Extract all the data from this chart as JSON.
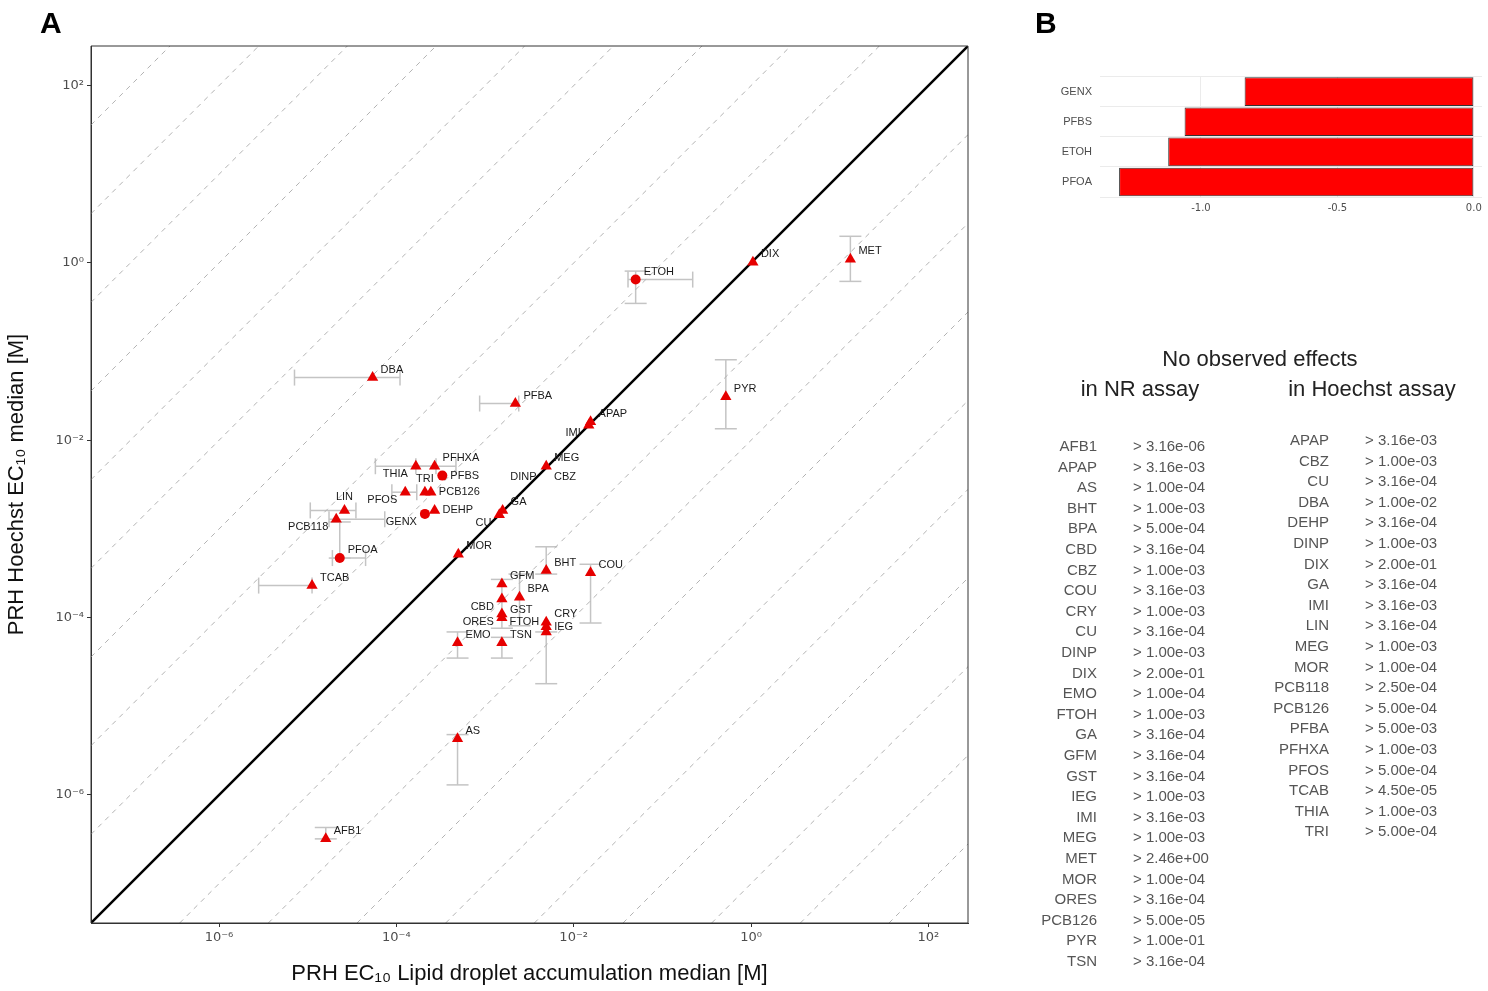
{
  "chart_data": [
    {
      "type": "scatter",
      "title": "A",
      "xlabel": "PRH EC₁₀ Lipid droplet accumulation median [M]",
      "ylabel": "PRH Hoechst EC₁₀ median [M]",
      "log": "xy",
      "grid": false,
      "xlim": [
        3.6e-08,
        280
      ],
      "ylim": [
        3.6e-08,
        280
      ],
      "xticks": [
        {
          "value": 1e-06,
          "label": "10⁻⁶"
        },
        {
          "value": 0.0001,
          "label": "10⁻⁴"
        },
        {
          "value": 0.01,
          "label": "10⁻²"
        },
        {
          "value": 1,
          "label": "10⁰"
        },
        {
          "value": 100,
          "label": "10²"
        }
      ],
      "yticks": [
        {
          "value": 1e-06,
          "label": "10⁻⁶"
        },
        {
          "value": 0.0001,
          "label": "10⁻⁴"
        },
        {
          "value": 0.01,
          "label": "10⁻²"
        },
        {
          "value": 1,
          "label": "10⁰"
        },
        {
          "value": 100,
          "label": "10²"
        }
      ],
      "series": [
        {
          "type": "scatter",
          "marker": "triangle",
          "color": "#e60000",
          "x": [
            5.4e-05,
            0.0022,
            0.0155,
            0.0148,
            0.000166,
            0.00027,
            0.000126,
            0.00021,
            0.000245,
            0.00027,
            2.6e-05,
            2.1e-05,
            1.12e-05,
            0.0005,
            0.00158,
            0.00145,
            0.0049,
            null,
            null,
            1.05,
            13.2,
            0.52,
            0.0049,
            0.0155,
            0.00155,
            0.00155,
            0.00245,
            0.00155,
            0.00155,
            0.00155,
            0.00049,
            0.0049,
            0.0049,
            0.0049,
            0.00049,
            1.6e-05
          ],
          "values": [
            0.051,
            0.026,
            0.0162,
            0.0148,
            0.0051,
            0.0051,
            0.0026,
            0.0026,
            0.0026,
            0.00162,
            0.00162,
            0.00129,
            0.00023,
            0.00052,
            0.00162,
            0.00145,
            0.0051,
            null,
            null,
            1.02,
            1.1,
            0.031,
            0.00034,
            0.00032,
            0.00024,
            0.000162,
            0.00017,
            0.00011,
            0.0001,
            5.2e-05,
            5.2e-05,
            8.9e-05,
            7.9e-05,
            6.9e-05,
            4.3e-06,
            3.2e-07
          ],
          "xerrors": [
            [
              7.1e-06,
              0.00011
            ],
            [
              0.00087,
              0.0024
            ],
            null,
            null,
            [
              5.8e-05,
              0.00028
            ],
            [
              0.000166,
              0.00047
            ],
            [
              8.9e-05,
              0.00017
            ],
            null,
            null,
            null,
            [
              1.07e-05,
              3.5e-05
            ],
            [
              1.74e-05,
              7.4e-05
            ],
            [
              2.8e-06,
              1.12e-05
            ],
            null,
            null,
            null,
            null,
            null,
            null,
            null,
            null,
            null,
            null,
            null,
            null,
            null,
            null,
            null,
            null,
            null,
            null,
            null,
            null,
            null,
            null,
            null
          ],
          "errors": [
            null,
            null,
            null,
            null,
            null,
            null,
            null,
            null,
            null,
            null,
            null,
            null,
            null,
            null,
            null,
            null,
            null,
            null,
            null,
            null,
            [
              0.62,
              2.0
            ],
            [
              0.0135,
              0.081
            ],
            [
              0.00031,
              0.00063
            ],
            [
              8.7e-05,
              0.0004
            ],
            null,
            null,
            [
              8.1e-05,
              0.00031
            ],
            null,
            [
              7.6e-05,
              0.00027
            ],
            [
              3.5e-05,
              6e-05
            ],
            [
              3.5e-05,
              6.9e-05
            ],
            null,
            null,
            [
              1.8e-05,
              6.9e-05
            ],
            [
              1.3e-06,
              4.8e-06
            ],
            [
              3.2e-07,
              4.3e-07
            ]
          ]
        },
        {
          "type": "scatter",
          "marker": "circle",
          "color": "#e60000",
          "x": [
            0.00033,
            0.00021,
            2.3e-05,
            0.05
          ],
          "values": [
            0.004,
            0.00148,
            0.00047,
            0.65
          ],
          "xerrors": [
            null,
            null,
            [
              1.9e-05,
              4.5e-05
            ],
            [
              0.041,
              0.22
            ]
          ],
          "errors": [
            null,
            null,
            [
              0.00047,
              0.0012
            ],
            [
              0.35,
              0.81
            ]
          ]
        },
        {
          "type": "line",
          "marker": "none",
          "line_style": "solid",
          "color": "#000000",
          "x": [
            3.6e-08,
            280
          ],
          "values": [
            3.6e-08,
            280
          ]
        },
        {
          "type": "line",
          "marker": "none",
          "line_style": "dashed",
          "color": "#b3b3b3",
          "x": [
            3.6e-08,
            28
          ],
          "values": [
            3.6e-07,
            280
          ]
        },
        {
          "type": "line",
          "marker": "none",
          "line_style": "dashed",
          "color": "#b3b3b3",
          "x": [
            3.6e-08,
            2.8
          ],
          "values": [
            3.6e-06,
            280
          ]
        },
        {
          "type": "line",
          "marker": "none",
          "line_style": "dashed",
          "color": "#b3b3b3",
          "x": [
            3.6e-08,
            0.28
          ],
          "values": [
            3.6e-05,
            280
          ]
        },
        {
          "type": "line",
          "marker": "none",
          "line_style": "dashed",
          "color": "#b3b3b3",
          "x": [
            3.6e-08,
            0.028
          ],
          "values": [
            0.00036,
            280
          ]
        },
        {
          "type": "line",
          "marker": "none",
          "line_style": "dashed",
          "color": "#b3b3b3",
          "x": [
            3.6e-08,
            0.0028
          ],
          "values": [
            0.0036,
            280
          ]
        },
        {
          "type": "line",
          "marker": "none",
          "line_style": "dashed",
          "color": "#b3b3b3",
          "x": [
            3.6e-08,
            0.00028
          ],
          "values": [
            0.036,
            280
          ]
        },
        {
          "type": "line",
          "marker": "none",
          "line_style": "dashed",
          "color": "#b3b3b3",
          "x": [
            3.6e-08,
            2.8e-05
          ],
          "values": [
            0.36,
            280
          ]
        },
        {
          "type": "line",
          "marker": "none",
          "line_style": "dashed",
          "color": "#b3b3b3",
          "x": [
            3.6e-08,
            2.8e-06
          ],
          "values": [
            3.6,
            280
          ]
        },
        {
          "type": "line",
          "marker": "none",
          "line_style": "dashed",
          "color": "#b3b3b3",
          "x": [
            3.6e-08,
            2.8e-07
          ],
          "values": [
            36,
            280
          ]
        },
        {
          "type": "line",
          "marker": "none",
          "line_style": "dashed",
          "color": "#b3b3b3",
          "x": [
            3.6e-07,
            280
          ],
          "values": [
            3.6e-08,
            28
          ]
        },
        {
          "type": "line",
          "marker": "none",
          "line_style": "dashed",
          "color": "#b3b3b3",
          "x": [
            3.6e-06,
            280
          ],
          "values": [
            3.6e-08,
            2.8
          ]
        },
        {
          "type": "line",
          "marker": "none",
          "line_style": "dashed",
          "color": "#b3b3b3",
          "x": [
            3.6e-05,
            280
          ],
          "values": [
            3.6e-08,
            0.28
          ]
        },
        {
          "type": "line",
          "marker": "none",
          "line_style": "dashed",
          "color": "#b3b3b3",
          "x": [
            0.00036,
            280
          ],
          "values": [
            3.6e-08,
            0.028
          ]
        },
        {
          "type": "line",
          "marker": "none",
          "line_style": "dashed",
          "color": "#b3b3b3",
          "x": [
            0.0036,
            280
          ],
          "values": [
            3.6e-08,
            0.0028
          ]
        },
        {
          "type": "line",
          "marker": "none",
          "line_style": "dashed",
          "color": "#b3b3b3",
          "x": [
            0.036,
            280
          ],
          "values": [
            3.6e-08,
            0.00028
          ]
        },
        {
          "type": "line",
          "marker": "none",
          "line_style": "dashed",
          "color": "#b3b3b3",
          "x": [
            0.36,
            280
          ],
          "values": [
            3.6e-08,
            2.8e-05
          ]
        },
        {
          "type": "line",
          "marker": "none",
          "line_style": "dashed",
          "color": "#b3b3b3",
          "x": [
            3.6,
            280
          ],
          "values": [
            3.6e-08,
            2.8e-06
          ]
        },
        {
          "type": "line",
          "marker": "none",
          "line_style": "dashed",
          "color": "#b3b3b3",
          "x": [
            36,
            280
          ],
          "values": [
            3.6e-08,
            2.8e-07
          ]
        }
      ],
      "annotations": [
        {
          "text": "DBA",
          "x": 5.4e-05,
          "y": 0.051
        },
        {
          "text": "PFBA",
          "x": 0.0022,
          "y": 0.026
        },
        {
          "text": "APAP",
          "x": 0.0155,
          "y": 0.0162
        },
        {
          "text": "IMI",
          "x": 0.0148,
          "y": 0.0148
        },
        {
          "text": "THIA",
          "x": 0.000166,
          "y": 0.0051
        },
        {
          "text": "PFHXA",
          "x": 0.00027,
          "y": 0.0051
        },
        {
          "text": "PFOS",
          "x": 0.000126,
          "y": 0.0026
        },
        {
          "text": "TRI",
          "x": 0.00021,
          "y": 0.0026
        },
        {
          "text": "PCB126",
          "x": 0.000245,
          "y": 0.0026
        },
        {
          "text": "DEHP",
          "x": 0.00027,
          "y": 0.00162
        },
        {
          "text": "LIN",
          "x": 2.6e-05,
          "y": 0.00162
        },
        {
          "text": "PCB118",
          "x": 2.1e-05,
          "y": 0.00129
        },
        {
          "text": "TCAB",
          "x": 1.12e-05,
          "y": 0.00023
        },
        {
          "text": "MOR",
          "x": 0.0005,
          "y": 0.00052
        },
        {
          "text": "GA",
          "x": 0.00158,
          "y": 0.00162
        },
        {
          "text": "CU",
          "x": 0.00145,
          "y": 0.00145
        },
        {
          "text": "MEG",
          "x": 0.0049,
          "y": 0.0051
        },
        {
          "text": "DINP",
          "x": 0.0047,
          "y": 0.0047
        },
        {
          "text": "CBZ",
          "x": 0.005,
          "y": 0.005
        },
        {
          "text": "DIX",
          "x": 1.05,
          "y": 1.02
        },
        {
          "text": "MET",
          "x": 13.2,
          "y": 1.1
        },
        {
          "text": "PYR",
          "x": 0.52,
          "y": 0.031
        },
        {
          "text": "BHT",
          "x": 0.0049,
          "y": 0.00034
        },
        {
          "text": "COU",
          "x": 0.0155,
          "y": 0.00032
        },
        {
          "text": "GFM",
          "x": 0.00155,
          "y": 0.00024
        },
        {
          "text": "CBD",
          "x": 0.00155,
          "y": 0.000162
        },
        {
          "text": "BPA",
          "x": 0.00245,
          "y": 0.00017
        },
        {
          "text": "ORES",
          "x": 0.00155,
          "y": 0.00011
        },
        {
          "text": "GST",
          "x": 0.00155,
          "y": 0.0001
        },
        {
          "text": "TSN",
          "x": 0.00155,
          "y": 5.2e-05
        },
        {
          "text": "EMO",
          "x": 0.00049,
          "y": 5.2e-05
        },
        {
          "text": "CRY",
          "x": 0.0049,
          "y": 8.9e-05
        },
        {
          "text": "IEG",
          "x": 0.0049,
          "y": 7.9e-05
        },
        {
          "text": "FTOH",
          "x": 0.0049,
          "y": 6.9e-05
        },
        {
          "text": "AS",
          "x": 0.00049,
          "y": 4.3e-06
        },
        {
          "text": "AFB1",
          "x": 1.6e-05,
          "y": 3.2e-07
        },
        {
          "text": "PFBS",
          "x": 0.00033,
          "y": 0.004
        },
        {
          "text": "GENX",
          "x": 0.00021,
          "y": 0.00148
        },
        {
          "text": "PFOA",
          "x": 2.3e-05,
          "y": 0.00047
        },
        {
          "text": "ETOH",
          "x": 0.05,
          "y": 0.65
        }
      ]
    },
    {
      "type": "bar",
      "title": "B",
      "orientation": "horizontal",
      "grid": true,
      "categories": [
        "GENX",
        "PFBS",
        "ETOH",
        "PFOA"
      ],
      "values": [
        -0.84,
        -1.06,
        -1.12,
        -1.3
      ],
      "color": "#ff0000",
      "xlim": [
        -1.37,
        0.03
      ],
      "xticks": [
        {
          "value": -1,
          "label": "-1.0"
        },
        {
          "value": -0.5,
          "label": "-0.5"
        },
        {
          "value": 0,
          "label": "0.0"
        }
      ]
    },
    {
      "type": "other",
      "title": "No observed effects",
      "subtitle": "in NR assay",
      "categories": [
        "AFB1",
        "APAP",
        "AS",
        "BHT",
        "BPA",
        "CBD",
        "CBZ",
        "COU",
        "CRY",
        "CU",
        "DINP",
        "DIX",
        "EMO",
        "FTOH",
        "GA",
        "GFM",
        "GST",
        "IEG",
        "IMI",
        "MEG",
        "MET",
        "MOR",
        "ORES",
        "PCB126",
        "PYR",
        "TSN"
      ],
      "value_labels": [
        "> 3.16e-06",
        "> 3.16e-03",
        "> 1.00e-04",
        "> 1.00e-03",
        "> 5.00e-04",
        "> 3.16e-04",
        "> 1.00e-03",
        "> 3.16e-03",
        "> 1.00e-03",
        "> 3.16e-04",
        "> 1.00e-03",
        "> 2.00e-01",
        "> 1.00e-04",
        "> 1.00e-03",
        "> 3.16e-04",
        "> 3.16e-04",
        "> 3.16e-04",
        "> 1.00e-03",
        "> 3.16e-03",
        "> 1.00e-03",
        "> 2.46e+00",
        "> 1.00e-04",
        "> 3.16e-04",
        "> 5.00e-05",
        "> 1.00e-01",
        "> 3.16e-04"
      ]
    },
    {
      "type": "other",
      "subtitle": "in Hoechst assay",
      "categories": [
        "APAP",
        "CBZ",
        "CU",
        "DBA",
        "DEHP",
        "DINP",
        "DIX",
        "GA",
        "IMI",
        "LIN",
        "MEG",
        "MOR",
        "PCB118",
        "PCB126",
        "PFBA",
        "PFHXA",
        "PFOS",
        "TCAB",
        "THIA",
        "TRI"
      ],
      "value_labels": [
        "> 3.16e-03",
        "> 1.00e-03",
        "> 3.16e-04",
        "> 1.00e-02",
        "> 3.16e-04",
        "> 1.00e-03",
        "> 2.00e-01",
        "> 3.16e-04",
        "> 3.16e-03",
        "> 3.16e-04",
        "> 1.00e-03",
        "> 1.00e-04",
        "> 2.50e-04",
        "> 5.00e-04",
        "> 5.00e-03",
        "> 1.00e-03",
        "> 5.00e-04",
        "> 4.50e-05",
        "> 1.00e-03",
        "> 5.00e-04"
      ]
    }
  ]
}
